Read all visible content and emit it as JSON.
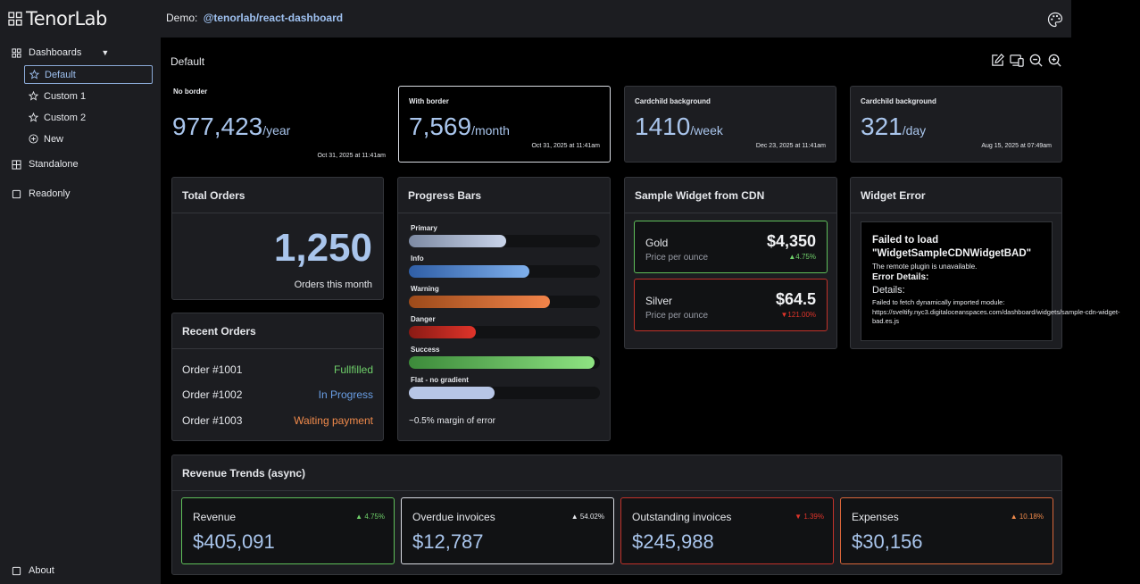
{
  "app": {
    "logo_text": "TenorLab"
  },
  "topbar": {
    "demo_label": "Demo:",
    "demo_link": "@tenorlab/react-dashboard"
  },
  "sidebar": {
    "dashboards_label": "Dashboards",
    "items": [
      {
        "label": "Default",
        "active": true
      },
      {
        "label": "Custom 1"
      },
      {
        "label": "Custom 2"
      },
      {
        "label": "New"
      }
    ],
    "standalone_label": "Standalone",
    "readonly_label": "Readonly",
    "about_label": "About"
  },
  "page": {
    "title": "Default"
  },
  "stats": [
    {
      "title": "No border",
      "value": "977,423",
      "unit": "/year",
      "date": "Oct 31, 2025 at 11:41am"
    },
    {
      "title": "With border",
      "value": "7,569",
      "unit": "/month",
      "date": "Oct 31, 2025 at 11:41am"
    },
    {
      "title": "Cardchild background",
      "value": "1410",
      "unit": "/week",
      "date": "Dec 23, 2025 at 11:41am"
    },
    {
      "title": "Cardchild background",
      "value": "321",
      "unit": "/day",
      "date": "Aug 15, 2025 at 07:49am"
    }
  ],
  "total_orders": {
    "title": "Total Orders",
    "value": "1,250",
    "caption": "Orders this month"
  },
  "recent_orders": {
    "title": "Recent Orders",
    "rows": [
      {
        "order": "Order #1001",
        "status": "Fullfilled",
        "color": "#6fd06a"
      },
      {
        "order": "Order #1002",
        "status": "In Progress",
        "color": "#6a9fe6"
      },
      {
        "order": "Order #1003",
        "status": "Waiting payment",
        "color": "#f08a4b"
      }
    ]
  },
  "progress": {
    "title": "Progress Bars",
    "bars": [
      {
        "label": "Primary",
        "level": 0.51,
        "from": "#7d8aa3",
        "to": "#c9d4ea"
      },
      {
        "label": "Info",
        "level": 0.63,
        "from": "#2f5ea6",
        "to": "#7fb0ec"
      },
      {
        "label": "Warning",
        "level": 0.74,
        "from": "#9c4a1a",
        "to": "#f2844a"
      },
      {
        "label": "Danger",
        "level": 0.35,
        "from": "#8a1a14",
        "to": "#e0342a"
      },
      {
        "label": "Success",
        "level": 0.97,
        "from": "#3c8a3a",
        "to": "#8ee382"
      },
      {
        "label": "Flat - no gradient",
        "level": 0.45,
        "from": "#b7c6e6",
        "to": "#b7c6e6"
      }
    ],
    "margin_note": "~0.5% margin of error"
  },
  "cdn_widget": {
    "title": "Sample Widget from CDN",
    "items": [
      {
        "name": "Gold",
        "price": "$4,350",
        "sub": "Price per ounce",
        "change": "▲4.75%",
        "color": "#6fd06a"
      },
      {
        "name": "Silver",
        "price": "$64.5",
        "sub": "Price per ounce",
        "change": "▼121.00%",
        "color": "#e0342a"
      }
    ]
  },
  "widget_error": {
    "title": "Widget Error",
    "heading": "Failed to load \"WidgetSampleCDNWidgetBAD\"",
    "remote": "The remote plugin is unavailable.",
    "details_bold": "Error Details:",
    "details": "Details:",
    "message": "Failed to fetch dynamically imported module: https://sveltify.nyc3.digitaloceanspaces.com/dashboard/widgets/sample-cdn-widget-bad.es.js"
  },
  "revenue": {
    "title": "Revenue Trends (async)",
    "cards": [
      {
        "title": "Revenue",
        "change": "▲ 4.75%",
        "value": "$405,091",
        "border": "#5fbf5a",
        "change_color": "#6fd06a"
      },
      {
        "title": "Overdue invoices",
        "change": "▲ 54.02%",
        "value": "$12,787",
        "border": "#d9dce3",
        "change_color": "#e6e8ec"
      },
      {
        "title": "Outstanding invoices",
        "change": "▼ 1.39%",
        "value": "$245,988",
        "border": "#c2322a",
        "change_color": "#e0342a"
      },
      {
        "title": "Expenses",
        "change": "▲ 10.18%",
        "value": "$30,156",
        "border": "#d9663a",
        "change_color": "#f08a4b"
      }
    ]
  }
}
